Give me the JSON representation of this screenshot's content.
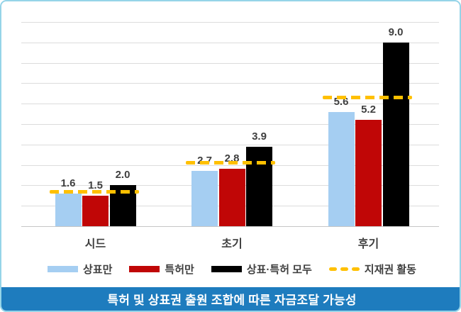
{
  "chart_data": {
    "type": "bar",
    "title": "특허 및 상표권 출원 조합에 따른 자금조달 가능성",
    "title_position": "bottom-banner",
    "categories": [
      "시드",
      "초기",
      "후기"
    ],
    "series": [
      {
        "name": "상표만",
        "color": "#a5cef2",
        "values": [
          1.6,
          2.7,
          5.6
        ]
      },
      {
        "name": "특허만",
        "color": "#c00606",
        "values": [
          1.5,
          2.8,
          5.2
        ]
      },
      {
        "name": "상표·특허 모두",
        "color": "#000000",
        "values": [
          2.0,
          3.9,
          9.0
        ]
      }
    ],
    "line_series": {
      "name": "지재권 활동",
      "color": "#ffc000",
      "style": "dashed",
      "values_estimated_from_plot": [
        1.7,
        3.1,
        6.3
      ]
    },
    "value_labels_format": "one-decimal",
    "xlabel": "",
    "ylabel": "",
    "ylim": [
      0,
      10
    ],
    "grid": "horizontal gridlines every 1 unit, no y-axis tick labels",
    "legend_position": "bottom"
  },
  "colors": {
    "card_border": "#96d4e8",
    "title_banner_bg": "#1e7cbe",
    "title_banner_text": "#ffffff",
    "gridline": "#dcdcdc",
    "text": "#3f3f3f"
  }
}
